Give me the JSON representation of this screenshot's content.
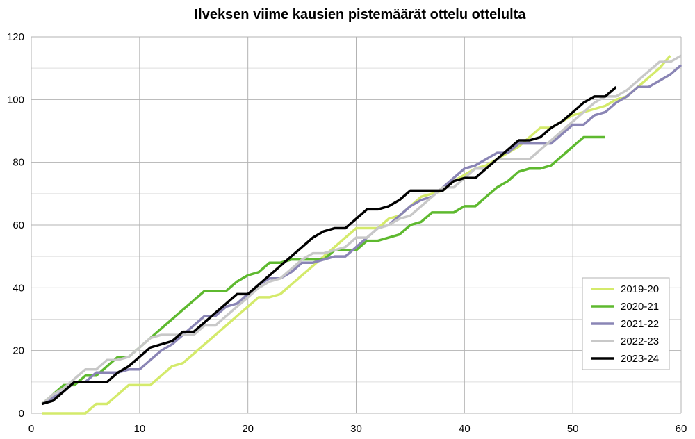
{
  "chart_data": {
    "type": "line",
    "title": "Ilveksen viime kausien pistemäärät ottelu ottelulta",
    "xlabel": "",
    "ylabel": "",
    "xlim": [
      0,
      60
    ],
    "ylim": [
      0,
      120
    ],
    "xticks": [
      0,
      10,
      20,
      30,
      40,
      50,
      60
    ],
    "yticks": [
      0,
      20,
      40,
      60,
      80,
      100,
      120
    ],
    "grid": true,
    "legend_position": "bottom-right",
    "series": [
      {
        "name": "2019-20",
        "color": "#d4ea6b",
        "x": [
          1,
          2,
          3,
          4,
          5,
          6,
          7,
          8,
          9,
          10,
          11,
          12,
          13,
          14,
          15,
          16,
          17,
          18,
          19,
          20,
          21,
          22,
          23,
          24,
          25,
          26,
          27,
          28,
          29,
          30,
          31,
          32,
          33,
          34,
          35,
          36,
          37,
          38,
          39,
          40,
          41,
          42,
          43,
          44,
          45,
          46,
          47,
          48,
          49,
          50,
          51,
          52,
          53,
          54,
          55,
          56,
          57,
          58,
          59
        ],
        "y": [
          0,
          0,
          0,
          0,
          0,
          3,
          3,
          6,
          9,
          9,
          9,
          12,
          15,
          16,
          19,
          22,
          25,
          28,
          31,
          34,
          37,
          37,
          38,
          41,
          44,
          47,
          50,
          53,
          56,
          59,
          59,
          59,
          62,
          63,
          66,
          69,
          70,
          71,
          74,
          76,
          78,
          79,
          81,
          83,
          85,
          88,
          91,
          91,
          93,
          95,
          96,
          97,
          98,
          100,
          101,
          104,
          107,
          110,
          114
        ]
      },
      {
        "name": "2020-21",
        "color": "#5eb92f",
        "x": [
          1,
          2,
          3,
          4,
          5,
          6,
          7,
          8,
          9,
          10,
          11,
          12,
          13,
          14,
          15,
          16,
          17,
          18,
          19,
          20,
          21,
          22,
          23,
          24,
          25,
          26,
          27,
          28,
          29,
          30,
          31,
          32,
          33,
          34,
          35,
          36,
          37,
          38,
          39,
          40,
          41,
          42,
          43,
          44,
          45,
          46,
          47,
          48,
          49,
          50,
          51,
          52,
          53
        ],
        "y": [
          3,
          6,
          9,
          9,
          12,
          12,
          15,
          18,
          18,
          21,
          24,
          27,
          30,
          33,
          36,
          39,
          39,
          39,
          42,
          44,
          45,
          48,
          48,
          49,
          49,
          49,
          49,
          52,
          52,
          52,
          55,
          55,
          56,
          57,
          60,
          61,
          64,
          64,
          64,
          66,
          66,
          69,
          72,
          74,
          77,
          78,
          78,
          79,
          82,
          85,
          88,
          88,
          88
        ]
      },
      {
        "name": "2021-22",
        "color": "#8a85b5",
        "x": [
          1,
          2,
          3,
          4,
          5,
          6,
          7,
          8,
          9,
          10,
          11,
          12,
          13,
          14,
          15,
          16,
          17,
          18,
          19,
          20,
          21,
          22,
          23,
          24,
          25,
          26,
          27,
          28,
          29,
          30,
          31,
          32,
          33,
          34,
          35,
          36,
          37,
          38,
          39,
          40,
          41,
          42,
          43,
          44,
          45,
          46,
          47,
          48,
          49,
          50,
          51,
          52,
          53,
          54,
          55,
          56,
          57,
          58,
          59,
          60
        ],
        "y": [
          3,
          5,
          7,
          10,
          10,
          13,
          13,
          13,
          14,
          14,
          17,
          20,
          22,
          25,
          28,
          31,
          31,
          34,
          35,
          38,
          41,
          43,
          43,
          45,
          48,
          48,
          49,
          50,
          50,
          53,
          56,
          59,
          60,
          63,
          66,
          68,
          69,
          72,
          75,
          78,
          79,
          81,
          83,
          83,
          86,
          86,
          86,
          86,
          89,
          92,
          92,
          95,
          96,
          99,
          101,
          104,
          104,
          106,
          108,
          111
        ]
      },
      {
        "name": "2022-23",
        "color": "#c8c8c8",
        "x": [
          1,
          2,
          3,
          4,
          5,
          6,
          7,
          8,
          9,
          10,
          11,
          12,
          13,
          14,
          15,
          16,
          17,
          18,
          19,
          20,
          21,
          22,
          23,
          24,
          25,
          26,
          27,
          28,
          29,
          30,
          31,
          32,
          33,
          34,
          35,
          36,
          37,
          38,
          39,
          40,
          41,
          42,
          43,
          44,
          45,
          46,
          47,
          48,
          49,
          50,
          51,
          52,
          53,
          54,
          55,
          56,
          57,
          58,
          59,
          60
        ],
        "y": [
          3,
          6,
          8,
          11,
          14,
          14,
          17,
          17,
          18,
          21,
          24,
          25,
          25,
          25,
          25,
          28,
          28,
          31,
          34,
          37,
          40,
          42,
          43,
          46,
          49,
          51,
          51,
          52,
          53,
          56,
          56,
          59,
          60,
          62,
          63,
          66,
          69,
          72,
          72,
          75,
          78,
          78,
          81,
          81,
          81,
          81,
          84,
          87,
          90,
          93,
          96,
          99,
          101,
          101,
          103,
          106,
          109,
          112,
          112,
          114
        ]
      },
      {
        "name": "2023-24",
        "color": "#000000",
        "x": [
          1,
          2,
          3,
          4,
          5,
          6,
          7,
          8,
          9,
          10,
          11,
          12,
          13,
          14,
          15,
          16,
          17,
          18,
          19,
          20,
          21,
          22,
          23,
          24,
          25,
          26,
          27,
          28,
          29,
          30,
          31,
          32,
          33,
          34,
          35,
          36,
          37,
          38,
          39,
          40,
          41,
          42,
          43,
          44,
          45,
          46,
          47,
          48,
          49,
          50,
          51,
          52,
          53,
          54
        ],
        "y": [
          3,
          4,
          7,
          10,
          10,
          10,
          10,
          13,
          15,
          18,
          21,
          22,
          23,
          26,
          26,
          29,
          32,
          35,
          38,
          38,
          41,
          44,
          47,
          50,
          53,
          56,
          58,
          59,
          59,
          62,
          65,
          65,
          66,
          68,
          71,
          71,
          71,
          71,
          74,
          75,
          75,
          78,
          81,
          84,
          87,
          87,
          88,
          91,
          93,
          96,
          99,
          101,
          101,
          104
        ]
      }
    ]
  }
}
